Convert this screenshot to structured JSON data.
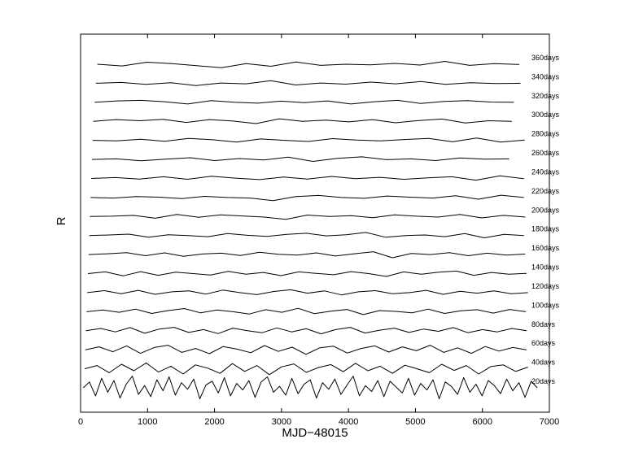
{
  "chart_data": {
    "type": "line",
    "title": "",
    "xlabel": "MJD−48015",
    "ylabel": "R",
    "xlim": [
      0,
      7000
    ],
    "x_ticks": [
      "0",
      "1000",
      "2000",
      "3000",
      "4000",
      "5000",
      "6000",
      "7000"
    ],
    "y_ticks_shown": false,
    "grid": false,
    "legend": "none",
    "line_color": "#000000",
    "series": [
      {
        "name": "360days",
        "x_start": 250,
        "x_end": 6550,
        "points": [
          0.0,
          -0.3,
          0.35,
          0.1,
          -0.25,
          -0.6,
          0.1,
          -0.35,
          0.4,
          -0.2,
          0.0,
          -0.1,
          0.15,
          -0.15,
          0.5,
          -0.2,
          0.1,
          -0.05
        ]
      },
      {
        "name": "340days",
        "x_start": 230,
        "x_end": 6570,
        "points": [
          0.0,
          0.15,
          -0.2,
          0.1,
          -0.4,
          0.05,
          -0.1,
          0.45,
          -0.3,
          0.05,
          -0.15,
          0.2,
          -0.1,
          0.3,
          -0.2,
          0.1,
          -0.05,
          0.0
        ]
      },
      {
        "name": "320days",
        "x_start": 210,
        "x_end": 6470,
        "points": [
          0.0,
          0.25,
          0.35,
          0.1,
          -0.3,
          0.3,
          0.0,
          -0.15,
          0.2,
          -0.05,
          0.25,
          -0.3,
          0.1,
          0.35,
          -0.2,
          0.15,
          0.3,
          0.05,
          0.0
        ]
      },
      {
        "name": "300days",
        "x_start": 190,
        "x_end": 6440,
        "points": [
          0.0,
          0.3,
          0.1,
          0.35,
          -0.2,
          0.3,
          0.05,
          -0.4,
          0.45,
          0.0,
          0.2,
          -0.1,
          0.3,
          -0.25,
          0.15,
          0.4,
          -0.3,
          0.1,
          0.0
        ]
      },
      {
        "name": "280days",
        "x_start": 180,
        "x_end": 6630,
        "points": [
          0.0,
          -0.1,
          0.2,
          -0.15,
          0.35,
          0.1,
          -0.3,
          0.25,
          0.0,
          -0.2,
          0.3,
          0.05,
          -0.1,
          0.15,
          0.35,
          -0.25,
          0.4,
          -0.3,
          0.05
        ]
      },
      {
        "name": "260days",
        "x_start": 170,
        "x_end": 6400,
        "points": [
          0.0,
          0.1,
          -0.25,
          0.05,
          0.3,
          -0.2,
          0.15,
          -0.1,
          0.4,
          -0.35,
          0.2,
          0.45,
          -0.05,
          0.1,
          -0.2,
          0.25,
          0.05,
          0.1
        ]
      },
      {
        "name": "240days",
        "x_start": 160,
        "x_end": 6620,
        "points": [
          0.0,
          0.15,
          -0.1,
          0.3,
          -0.15,
          0.4,
          0.05,
          -0.2,
          0.25,
          -0.1,
          0.35,
          -0.05,
          0.2,
          -0.15,
          0.1,
          0.3,
          -0.3,
          0.45,
          -0.05
        ]
      },
      {
        "name": "220days",
        "x_start": 150,
        "x_end": 6620,
        "points": [
          0.0,
          -0.1,
          0.15,
          0.05,
          -0.2,
          0.2,
          0.0,
          -0.1,
          -0.55,
          0.15,
          0.35,
          0.0,
          -0.15,
          0.25,
          0.05,
          -0.1,
          0.3,
          -0.3,
          0.4,
          0.0
        ]
      },
      {
        "name": "200days",
        "x_start": 140,
        "x_end": 6640,
        "points": [
          0.0,
          0.05,
          0.2,
          -0.3,
          0.35,
          -0.15,
          0.3,
          0.1,
          -0.1,
          -0.5,
          0.25,
          0.0,
          0.15,
          -0.2,
          0.3,
          0.05,
          -0.1,
          0.35,
          -0.25,
          0.2,
          -0.1
        ]
      },
      {
        "name": "180days",
        "x_start": 130,
        "x_end": 6620,
        "points": [
          0.0,
          0.1,
          0.25,
          -0.3,
          0.15,
          0.0,
          -0.2,
          0.35,
          0.05,
          -0.15,
          0.2,
          0.4,
          -0.05,
          0.15,
          0.55,
          -0.3,
          0.0,
          0.1,
          -0.2,
          0.35,
          -0.4,
          0.2,
          0.0
        ]
      },
      {
        "name": "160days",
        "x_start": 120,
        "x_end": 6640,
        "points": [
          0.0,
          0.15,
          0.35,
          -0.2,
          0.3,
          -0.3,
          0.1,
          0.25,
          -0.15,
          0.4,
          0.05,
          -0.1,
          0.3,
          -0.25,
          0.15,
          0.5,
          -0.55,
          0.2,
          0.0,
          0.35,
          -0.2,
          0.25,
          -0.1,
          0.1
        ]
      },
      {
        "name": "140days",
        "x_start": 110,
        "x_end": 6660,
        "points": [
          0.0,
          0.3,
          -0.4,
          0.35,
          -0.3,
          0.25,
          0.0,
          -0.25,
          0.4,
          -0.1,
          0.2,
          -0.35,
          0.3,
          0.05,
          -0.2,
          0.35,
          0.0,
          -0.5,
          0.3,
          -0.1,
          0.25,
          0.45,
          -0.3,
          0.2,
          -0.1,
          0.05
        ]
      },
      {
        "name": "120days",
        "x_start": 100,
        "x_end": 6680,
        "points": [
          0.0,
          0.35,
          -0.2,
          0.4,
          -0.3,
          0.15,
          0.3,
          -0.25,
          0.45,
          0.0,
          -0.35,
          0.2,
          0.5,
          -0.1,
          0.3,
          -0.4,
          0.15,
          0.35,
          -0.2,
          0.0,
          0.4,
          -0.3,
          0.25,
          -0.1,
          0.3,
          -0.2,
          0.0
        ]
      },
      {
        "name": "100days",
        "x_start": 90,
        "x_end": 6650,
        "points": [
          0.0,
          0.3,
          -0.1,
          0.45,
          -0.3,
          0.2,
          0.55,
          -0.2,
          0.3,
          0.0,
          -0.4,
          0.35,
          -0.1,
          0.6,
          -0.35,
          0.1,
          0.4,
          -0.5,
          0.2,
          0.05,
          -0.2,
          0.45,
          -0.3,
          0.15,
          0.35,
          -0.25,
          0.4,
          0.0
        ]
      },
      {
        "name": "80days",
        "x_start": 80,
        "x_end": 6660,
        "points": [
          0.0,
          0.4,
          -0.2,
          0.55,
          -0.45,
          0.3,
          0.6,
          -0.3,
          0.2,
          -0.5,
          0.45,
          0.0,
          -0.35,
          0.5,
          -0.2,
          0.35,
          -0.55,
          0.2,
          0.6,
          -0.4,
          0.1,
          0.45,
          -0.3,
          0.3,
          -0.1,
          0.55,
          -0.35,
          0.2,
          -0.2,
          0.4,
          0.0
        ]
      },
      {
        "name": "60days",
        "x_start": 70,
        "x_end": 6660,
        "points": [
          0.0,
          0.45,
          -0.3,
          0.6,
          -0.55,
          0.35,
          0.7,
          -0.4,
          0.2,
          -0.6,
          0.5,
          0.1,
          -0.45,
          0.65,
          -0.25,
          0.4,
          -0.7,
          0.3,
          0.55,
          -0.5,
          0.2,
          0.6,
          -0.35,
          0.45,
          -0.15,
          0.7,
          -0.4,
          0.3,
          -0.55,
          0.5,
          -0.2,
          0.35,
          0.0
        ]
      },
      {
        "name": "40days",
        "x_start": 60,
        "x_end": 6680,
        "points": [
          0.0,
          0.5,
          -0.6,
          0.7,
          -0.3,
          0.9,
          -0.5,
          0.4,
          -0.8,
          0.6,
          0.1,
          -0.7,
          0.8,
          -0.4,
          0.5,
          -0.9,
          0.3,
          0.75,
          -0.55,
          0.2,
          0.65,
          -0.45,
          0.85,
          -0.3,
          0.4,
          -0.7,
          0.55,
          0.0,
          -0.6,
          0.7,
          -0.25,
          0.5,
          -0.8,
          0.35,
          0.6,
          -0.4,
          0.25
        ]
      },
      {
        "name": "20days",
        "x_start": 40,
        "x_end": 6820,
        "points": [
          0.0,
          0.8,
          -1.1,
          1.3,
          -0.6,
          1.0,
          -1.4,
          0.5,
          1.6,
          -0.9,
          0.3,
          -1.2,
          1.1,
          -0.4,
          1.5,
          -1.0,
          0.7,
          -0.2,
          1.2,
          -1.5,
          0.4,
          0.9,
          -0.7,
          1.4,
          -1.1,
          0.6,
          -0.3,
          1.0,
          -1.3,
          0.8,
          1.5,
          -0.6,
          0.2,
          -1.0,
          1.3,
          -0.8,
          0.5,
          1.1,
          -1.4,
          0.7,
          -0.2,
          1.2,
          -0.9,
          0.4,
          1.6,
          -1.1,
          0.3,
          -0.5,
          1.0,
          -1.2,
          0.9,
          0.1,
          -0.7,
          1.3,
          -1.0,
          0.6,
          -0.3,
          1.1,
          -1.5,
          0.8,
          0.2,
          -0.9,
          1.4,
          -0.6,
          0.5,
          -1.1,
          1.0,
          0.3,
          -0.8,
          1.2,
          -0.4,
          0.7,
          -1.3,
          0.9,
          0.0
        ]
      }
    ]
  }
}
